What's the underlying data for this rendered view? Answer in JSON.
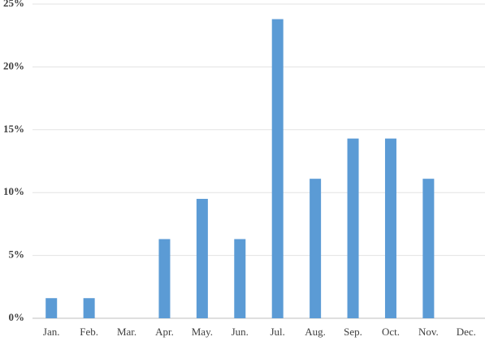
{
  "chart_data": {
    "type": "bar",
    "categories": [
      "Jan.",
      "Feb.",
      "Mar.",
      "Apr.",
      "May.",
      "Jun.",
      "Jul.",
      "Aug.",
      "Sep.",
      "Oct.",
      "Nov.",
      "Dec."
    ],
    "values": [
      1.6,
      1.6,
      0,
      6.3,
      9.5,
      6.3,
      23.8,
      11.1,
      14.3,
      14.3,
      11.1,
      0
    ],
    "color": "#5b9bd5",
    "ylim": [
      0,
      25
    ],
    "yticks": [
      {
        "value": 0,
        "label": "0%"
      },
      {
        "value": 5,
        "label": "5%"
      },
      {
        "value": 10,
        "label": "10%"
      },
      {
        "value": 15,
        "label": "15%"
      },
      {
        "value": 20,
        "label": "20%"
      },
      {
        "value": 25,
        "label": "25%"
      }
    ],
    "grid": true
  }
}
